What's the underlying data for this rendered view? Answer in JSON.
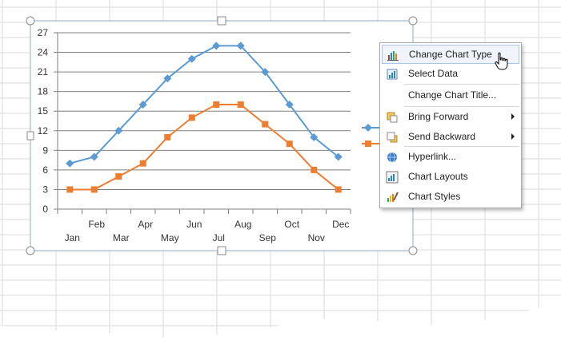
{
  "chart_data": {
    "type": "line",
    "x": [
      "Jan",
      "Feb",
      "Mar",
      "Apr",
      "May",
      "Jun",
      "Jul",
      "Aug",
      "Sep",
      "Oct",
      "Nov",
      "Dec"
    ],
    "series": [
      {
        "values": [
          7,
          8,
          12,
          16,
          20,
          23,
          25,
          25,
          21,
          16,
          11,
          8
        ],
        "color": "#5b9bd5",
        "marker": "diamond"
      },
      {
        "values": [
          3,
          3,
          5,
          7,
          11,
          14,
          16,
          16,
          13,
          10,
          6,
          3
        ],
        "color": "#ed7d31",
        "marker": "square"
      }
    ],
    "yticks": [
      0,
      3,
      6,
      9,
      12,
      15,
      18,
      21,
      24,
      27
    ],
    "ylim": [
      0,
      27
    ],
    "grid": "horizontal",
    "legend": "right"
  },
  "context_menu": {
    "items": [
      {
        "label": "Change Chart Type",
        "icon": "change-chart-type-icon",
        "submenu": false
      },
      {
        "label": "Select Data",
        "icon": "select-data-icon",
        "submenu": false
      },
      {
        "label": "Change Chart Title...",
        "icon": "",
        "submenu": false
      },
      {
        "label": "Bring Forward",
        "icon": "bring-forward-icon",
        "submenu": true
      },
      {
        "label": "Send Backward",
        "icon": "send-backward-icon",
        "submenu": true
      },
      {
        "label": "Hyperlink...",
        "icon": "hyperlink-icon",
        "submenu": false
      },
      {
        "label": "Chart Layouts",
        "icon": "chart-layouts-icon",
        "submenu": false
      },
      {
        "label": "Chart Styles",
        "icon": "chart-styles-icon",
        "submenu": false
      }
    ]
  },
  "colors": {
    "grid": "#7f7f7f",
    "sheet_grid": "#dadada",
    "selection": "#8caac8"
  }
}
